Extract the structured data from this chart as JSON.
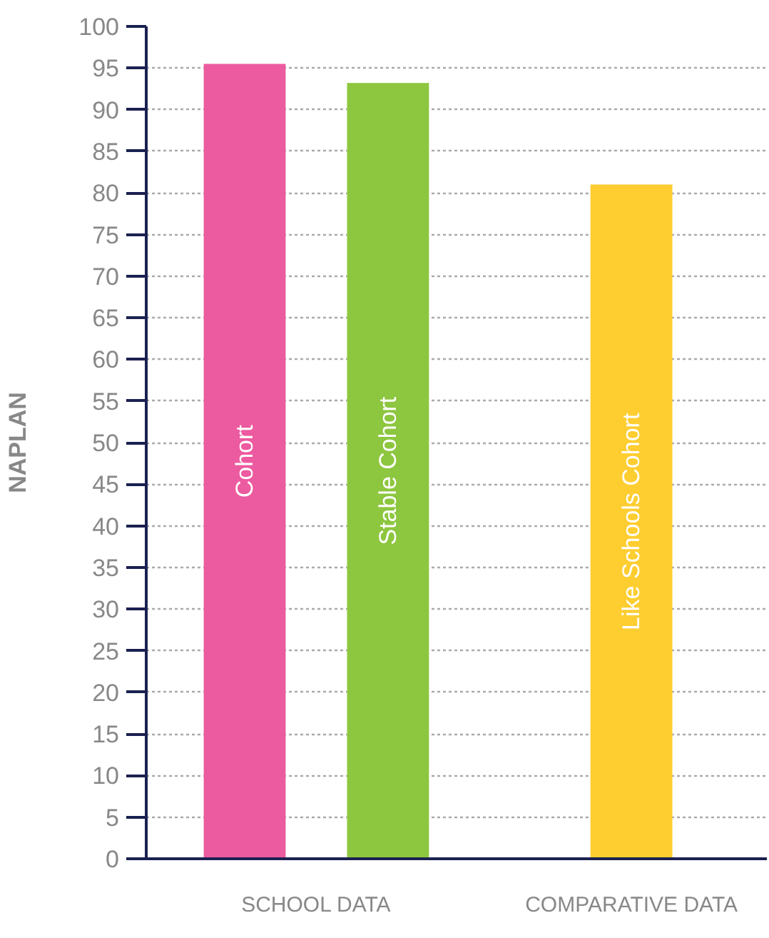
{
  "chart_data": {
    "type": "bar",
    "ylabel": "NAPLAN",
    "categories": [
      "SCHOOL DATA",
      "COMPARATIVE DATA"
    ],
    "series": [
      {
        "name": "Cohort",
        "color": "#ec5a9f",
        "values": [
          95.5,
          null
        ]
      },
      {
        "name": "Stable Cohort",
        "color": "#8dc63f",
        "values": [
          93.2,
          null
        ]
      },
      {
        "name": "Like Schools Cohort",
        "color": "#fecd30",
        "values": [
          null,
          81
        ]
      }
    ],
    "ylim": [
      0,
      100
    ],
    "yticks": [
      0,
      5,
      10,
      15,
      20,
      25,
      30,
      35,
      40,
      45,
      50,
      55,
      60,
      65,
      70,
      75,
      80,
      85,
      90,
      95,
      100
    ],
    "grid": "y"
  }
}
